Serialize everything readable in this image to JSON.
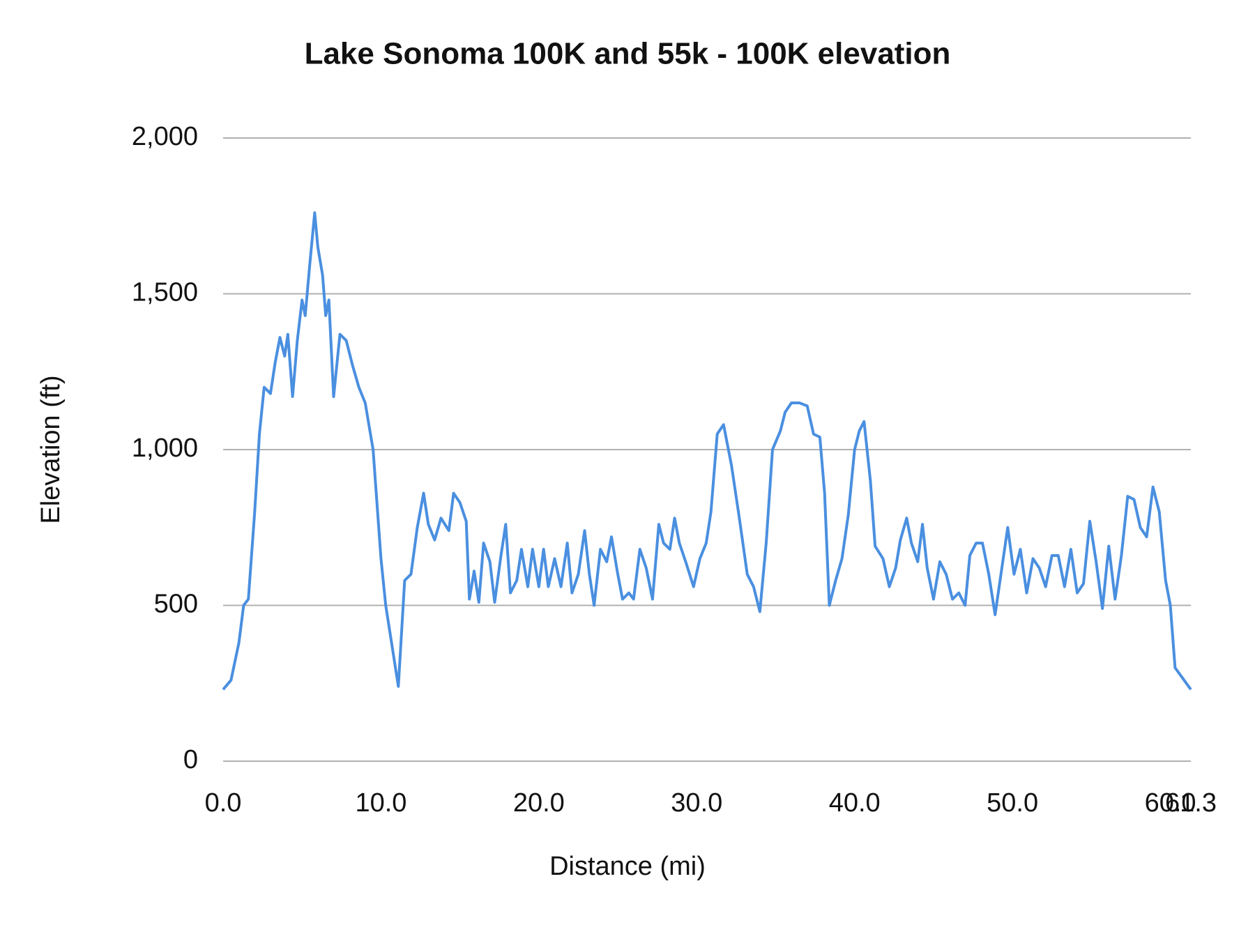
{
  "chart_data": {
    "type": "line",
    "title": "Lake Sonoma 100K and 55k - 100K elevation",
    "x_label": "Distance (mi)",
    "y_label": "Elevation (ft)",
    "xlim": [
      0,
      61.3
    ],
    "ylim": [
      0,
      2000
    ],
    "xticks": [
      {
        "value": 0,
        "label": "0.0"
      },
      {
        "value": 10,
        "label": "10.0"
      },
      {
        "value": 20,
        "label": "20.0"
      },
      {
        "value": 30,
        "label": "30.0"
      },
      {
        "value": 40,
        "label": "40.0"
      },
      {
        "value": 50,
        "label": "50.0"
      },
      {
        "value": 60,
        "label": "60.0"
      },
      61.3
    ],
    "yticks": [
      0,
      500,
      {
        "value": 1000,
        "label": "1,000"
      },
      {
        "value": 1500,
        "label": "1,500"
      },
      {
        "value": 2000,
        "label": "2,000"
      }
    ],
    "grid": true,
    "x": [
      0,
      0.5,
      1,
      1.3,
      1.6,
      2,
      2.3,
      2.6,
      3,
      3.3,
      3.6,
      3.9,
      4.1,
      4.4,
      4.7,
      5.0,
      5.2,
      5.5,
      5.8,
      6.0,
      6.3,
      6.5,
      6.7,
      7.0,
      7.4,
      7.8,
      8.2,
      8.6,
      9.0,
      9.5,
      10.0,
      10.3,
      10.7,
      11.1,
      11.5,
      11.9,
      12.3,
      12.7,
      13.0,
      13.4,
      13.8,
      14.3,
      14.6,
      15.0,
      15.4,
      15.6,
      15.9,
      16.2,
      16.5,
      16.9,
      17.2,
      17.6,
      17.9,
      18.2,
      18.6,
      18.9,
      19.3,
      19.6,
      20.0,
      20.3,
      20.6,
      21.0,
      21.4,
      21.8,
      22.1,
      22.5,
      22.9,
      23.2,
      23.5,
      23.9,
      24.3,
      24.6,
      25.0,
      25.3,
      25.7,
      26.0,
      26.4,
      26.8,
      27.2,
      27.6,
      27.9,
      28.3,
      28.6,
      28.9,
      29.3,
      29.8,
      30.2,
      30.6,
      30.9,
      31.3,
      31.7,
      32.2,
      32.7,
      33.2,
      33.6,
      34.0,
      34.4,
      34.8,
      35.3,
      35.6,
      36.0,
      36.5,
      37.0,
      37.4,
      37.8,
      38.1,
      38.4,
      38.8,
      39.2,
      39.6,
      40.0,
      40.3,
      40.6,
      41.0,
      41.3,
      41.8,
      42.2,
      42.6,
      42.9,
      43.3,
      43.6,
      44.0,
      44.3,
      44.6,
      45.0,
      45.4,
      45.8,
      46.2,
      46.6,
      47.0,
      47.3,
      47.7,
      48.1,
      48.5,
      48.9,
      49.3,
      49.7,
      50.1,
      50.5,
      50.9,
      51.3,
      51.7,
      52.1,
      52.5,
      52.9,
      53.3,
      53.7,
      54.1,
      54.5,
      54.9,
      55.3,
      55.7,
      56.1,
      56.5,
      56.9,
      57.3,
      57.7,
      58.1,
      58.5,
      58.9,
      59.3,
      59.7,
      60.0,
      60.3,
      61.3
    ],
    "series": [
      {
        "color": "#4a8fe0",
        "values": [
          230,
          260,
          380,
          500,
          520,
          800,
          1050,
          1200,
          1180,
          1280,
          1360,
          1300,
          1370,
          1170,
          1350,
          1480,
          1430,
          1600,
          1760,
          1650,
          1560,
          1430,
          1480,
          1170,
          1370,
          1350,
          1270,
          1200,
          1150,
          1000,
          650,
          500,
          370,
          240,
          580,
          600,
          750,
          860,
          760,
          710,
          780,
          740,
          860,
          830,
          770,
          520,
          610,
          510,
          700,
          640,
          510,
          660,
          760,
          540,
          580,
          680,
          560,
          680,
          560,
          680,
          560,
          650,
          560,
          700,
          540,
          600,
          740,
          600,
          500,
          680,
          640,
          720,
          600,
          520,
          540,
          520,
          680,
          620,
          520,
          760,
          700,
          680,
          780,
          700,
          640,
          560,
          650,
          700,
          800,
          1050,
          1080,
          950,
          780,
          600,
          560,
          480,
          700,
          1000,
          1060,
          1120,
          1150,
          1150,
          1140,
          1050,
          1040,
          860,
          500,
          580,
          650,
          790,
          1000,
          1060,
          1090,
          900,
          690,
          650,
          560,
          620,
          710,
          780,
          700,
          640,
          760,
          620,
          520,
          640,
          600,
          520,
          540,
          500,
          660,
          700,
          700,
          600,
          470,
          610,
          750,
          600,
          680,
          540,
          650,
          620,
          560,
          660,
          660,
          560,
          680,
          540,
          570,
          770,
          640,
          490,
          690,
          520,
          660,
          850,
          840,
          750,
          720,
          880,
          800,
          580,
          500,
          300,
          230
        ]
      }
    ]
  }
}
